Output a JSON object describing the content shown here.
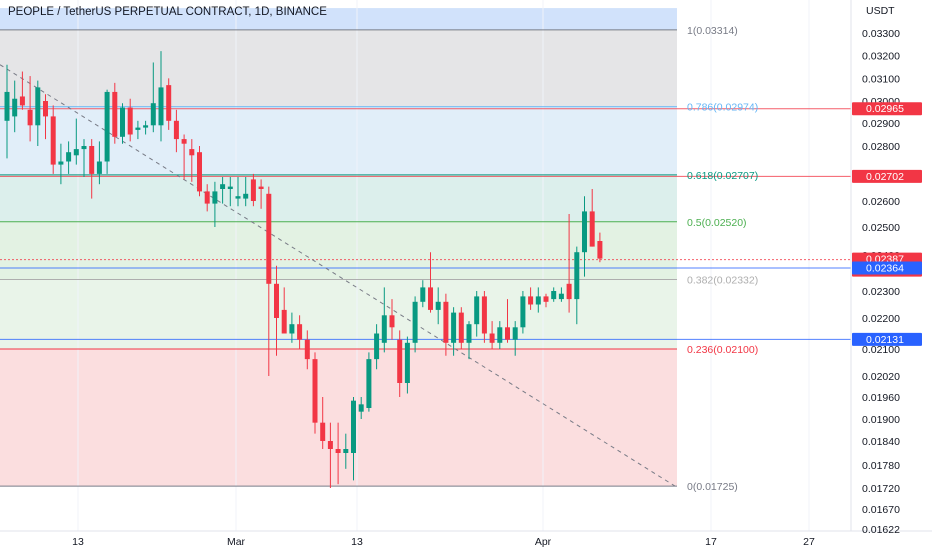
{
  "chart_data": {
    "type": "candlestick",
    "title": "PEOPLE / TetherUS PERPETUAL CONTRACT, 1D, BINANCE",
    "ylabel": "USDT",
    "ylim": [
      0.01622,
      0.0341
    ],
    "y_ticks": [
      "0.03300",
      "0.03200",
      "0.03100",
      "0.03000",
      "0.02900",
      "0.02800",
      "0.02700",
      "0.02600",
      "0.02500",
      "0.02400",
      "0.02300",
      "0.02200",
      "0.02100",
      "0.02020",
      "0.01960",
      "0.01900",
      "0.01840",
      "0.01780",
      "0.01720",
      "0.01670",
      "0.01622"
    ],
    "x_ticks": [
      "13",
      "Mar",
      "13",
      "Apr",
      "17",
      "27"
    ],
    "fib_levels": [
      {
        "label": "1(0.03314)",
        "value": 0.03314,
        "color": "#787b86"
      },
      {
        "label": "0.786(0.02974)",
        "value": 0.02974,
        "color": "#64b5f6"
      },
      {
        "label": "0.618(0.02707)",
        "value": 0.02707,
        "color": "#089981"
      },
      {
        "label": "0.5(0.02520)",
        "value": 0.0252,
        "color": "#4caf50"
      },
      {
        "label": "0.382(0.02332)",
        "value": 0.02332,
        "color": "#aeaeae"
      },
      {
        "label": "0.236(0.02100)",
        "value": 0.021,
        "color": "#f23645"
      },
      {
        "label": "0(0.01725)",
        "value": 0.01725,
        "color": "#787b86"
      }
    ],
    "fib_zones": [
      {
        "from": 0.03314,
        "to": 0.0341,
        "color": "#d1e2fb"
      },
      {
        "from": 0.02974,
        "to": 0.03314,
        "color": "#e5e5e7"
      },
      {
        "from": 0.02707,
        "to": 0.02974,
        "color": "#e1eef9"
      },
      {
        "from": 0.0252,
        "to": 0.02707,
        "color": "#dcefec"
      },
      {
        "from": 0.02332,
        "to": 0.0252,
        "color": "#e3f2e3"
      },
      {
        "from": 0.021,
        "to": 0.02332,
        "color": "#e9f4e9"
      },
      {
        "from": 0.01725,
        "to": 0.021,
        "color": "#fbdedf"
      }
    ],
    "price_tags": [
      {
        "text": "0.02965",
        "value": 0.02965,
        "color": "#f23645"
      },
      {
        "text": "0.02702",
        "value": 0.02702,
        "color": "#f23645"
      },
      {
        "text": "0.02387",
        "value": 0.02387,
        "color": "#f23645",
        "sub": "16:09:17"
      },
      {
        "text": "0.02364",
        "value": 0.02364,
        "color": "#2962ff"
      },
      {
        "text": "0.02131",
        "value": 0.02131,
        "color": "#2962ff"
      }
    ],
    "trendline": {
      "from": [
        0.0,
        0.0316
      ],
      "to": [
        675.0,
        0.01725
      ]
    },
    "candles": [
      {
        "o": 0.0291,
        "h": 0.0316,
        "l": 0.0276,
        "c": 0.0304
      },
      {
        "o": 0.0293,
        "h": 0.0309,
        "l": 0.0286,
        "c": 0.0301
      },
      {
        "o": 0.0302,
        "h": 0.0313,
        "l": 0.0296,
        "c": 0.0298
      },
      {
        "o": 0.0296,
        "h": 0.0311,
        "l": 0.0282,
        "c": 0.0289
      },
      {
        "o": 0.0289,
        "h": 0.0309,
        "l": 0.028,
        "c": 0.0306
      },
      {
        "o": 0.03,
        "h": 0.0303,
        "l": 0.0283,
        "c": 0.0293
      },
      {
        "o": 0.0293,
        "h": 0.0298,
        "l": 0.0271,
        "c": 0.0274
      },
      {
        "o": 0.0274,
        "h": 0.0281,
        "l": 0.0267,
        "c": 0.0275
      },
      {
        "o": 0.0275,
        "h": 0.0282,
        "l": 0.0271,
        "c": 0.0278
      },
      {
        "o": 0.0277,
        "h": 0.0292,
        "l": 0.0274,
        "c": 0.0279
      },
      {
        "o": 0.0279,
        "h": 0.0283,
        "l": 0.027,
        "c": 0.028
      },
      {
        "o": 0.028,
        "h": 0.0283,
        "l": 0.0261,
        "c": 0.0271
      },
      {
        "o": 0.0271,
        "h": 0.0282,
        "l": 0.0267,
        "c": 0.0275
      },
      {
        "o": 0.0275,
        "h": 0.0305,
        "l": 0.0271,
        "c": 0.0304
      },
      {
        "o": 0.0304,
        "h": 0.0308,
        "l": 0.0281,
        "c": 0.0284
      },
      {
        "o": 0.0284,
        "h": 0.0299,
        "l": 0.0281,
        "c": 0.0297
      },
      {
        "o": 0.0297,
        "h": 0.0301,
        "l": 0.0282,
        "c": 0.0285
      },
      {
        "o": 0.0287,
        "h": 0.0291,
        "l": 0.0283,
        "c": 0.0288
      },
      {
        "o": 0.0288,
        "h": 0.0291,
        "l": 0.0285,
        "c": 0.0289
      },
      {
        "o": 0.0289,
        "h": 0.0317,
        "l": 0.0286,
        "c": 0.0299
      },
      {
        "o": 0.0289,
        "h": 0.0322,
        "l": 0.0282,
        "c": 0.0306
      },
      {
        "o": 0.0307,
        "h": 0.031,
        "l": 0.0287,
        "c": 0.0291
      },
      {
        "o": 0.0291,
        "h": 0.0296,
        "l": 0.0278,
        "c": 0.0283
      },
      {
        "o": 0.0283,
        "h": 0.0285,
        "l": 0.0269,
        "c": 0.0281
      },
      {
        "o": 0.0279,
        "h": 0.0283,
        "l": 0.0268,
        "c": 0.0277
      },
      {
        "o": 0.0278,
        "h": 0.028,
        "l": 0.0262,
        "c": 0.0264
      },
      {
        "o": 0.0264,
        "h": 0.0267,
        "l": 0.0256,
        "c": 0.0259
      },
      {
        "o": 0.0259,
        "h": 0.0268,
        "l": 0.025,
        "c": 0.0264
      },
      {
        "o": 0.0265,
        "h": 0.027,
        "l": 0.0259,
        "c": 0.0267
      },
      {
        "o": 0.0265,
        "h": 0.027,
        "l": 0.0258,
        "c": 0.0266
      },
      {
        "o": 0.0261,
        "h": 0.027,
        "l": 0.0258,
        "c": 0.0262
      },
      {
        "o": 0.0261,
        "h": 0.027,
        "l": 0.0258,
        "c": 0.0263
      },
      {
        "o": 0.0269,
        "h": 0.0271,
        "l": 0.0258,
        "c": 0.026
      },
      {
        "o": 0.0266,
        "h": 0.0269,
        "l": 0.0257,
        "c": 0.0265
      },
      {
        "o": 0.0263,
        "h": 0.0266,
        "l": 0.0202,
        "c": 0.0232
      },
      {
        "o": 0.0232,
        "h": 0.0237,
        "l": 0.0208,
        "c": 0.022
      },
      {
        "o": 0.0223,
        "h": 0.0231,
        "l": 0.0216,
        "c": 0.0215
      },
      {
        "o": 0.0215,
        "h": 0.0222,
        "l": 0.0212,
        "c": 0.0218
      },
      {
        "o": 0.0218,
        "h": 0.0221,
        "l": 0.021,
        "c": 0.0213
      },
      {
        "o": 0.0213,
        "h": 0.0216,
        "l": 0.0204,
        "c": 0.0207
      },
      {
        "o": 0.0207,
        "h": 0.0209,
        "l": 0.0186,
        "c": 0.0189
      },
      {
        "o": 0.0189,
        "h": 0.0196,
        "l": 0.0182,
        "c": 0.0184
      },
      {
        "o": 0.0184,
        "h": 0.0189,
        "l": 0.0172,
        "c": 0.0182
      },
      {
        "o": 0.0182,
        "h": 0.0189,
        "l": 0.0173,
        "c": 0.0181
      },
      {
        "o": 0.0181,
        "h": 0.0186,
        "l": 0.0177,
        "c": 0.0182
      },
      {
        "o": 0.0181,
        "h": 0.0196,
        "l": 0.0174,
        "c": 0.0195
      },
      {
        "o": 0.0192,
        "h": 0.0196,
        "l": 0.019,
        "c": 0.0194
      },
      {
        "o": 0.0193,
        "h": 0.0209,
        "l": 0.0192,
        "c": 0.0207
      },
      {
        "o": 0.0207,
        "h": 0.0218,
        "l": 0.0204,
        "c": 0.0215
      },
      {
        "o": 0.0212,
        "h": 0.0231,
        "l": 0.0209,
        "c": 0.0221
      },
      {
        "o": 0.0221,
        "h": 0.0227,
        "l": 0.0213,
        "c": 0.0217
      },
      {
        "o": 0.0213,
        "h": 0.0216,
        "l": 0.0196,
        "c": 0.02
      },
      {
        "o": 0.02,
        "h": 0.0214,
        "l": 0.0197,
        "c": 0.0212
      },
      {
        "o": 0.0212,
        "h": 0.0228,
        "l": 0.0209,
        "c": 0.0226
      },
      {
        "o": 0.0226,
        "h": 0.0233,
        "l": 0.0224,
        "c": 0.0231
      },
      {
        "o": 0.0231,
        "h": 0.0241,
        "l": 0.0222,
        "c": 0.0223
      },
      {
        "o": 0.0223,
        "h": 0.0231,
        "l": 0.0218,
        "c": 0.0226
      },
      {
        "o": 0.0226,
        "h": 0.0229,
        "l": 0.0208,
        "c": 0.0212
      },
      {
        "o": 0.0212,
        "h": 0.0224,
        "l": 0.0208,
        "c": 0.0222
      },
      {
        "o": 0.0222,
        "h": 0.0224,
        "l": 0.021,
        "c": 0.0212
      },
      {
        "o": 0.0212,
        "h": 0.0219,
        "l": 0.0207,
        "c": 0.0218
      },
      {
        "o": 0.0218,
        "h": 0.023,
        "l": 0.0214,
        "c": 0.0228
      },
      {
        "o": 0.0228,
        "h": 0.023,
        "l": 0.0212,
        "c": 0.0215
      },
      {
        "o": 0.0215,
        "h": 0.0219,
        "l": 0.021,
        "c": 0.0212
      },
      {
        "o": 0.0212,
        "h": 0.0219,
        "l": 0.021,
        "c": 0.0217
      },
      {
        "o": 0.0217,
        "h": 0.0227,
        "l": 0.0212,
        "c": 0.0213
      },
      {
        "o": 0.0213,
        "h": 0.0219,
        "l": 0.0208,
        "c": 0.0217
      },
      {
        "o": 0.0217,
        "h": 0.023,
        "l": 0.0215,
        "c": 0.0228
      },
      {
        "o": 0.0228,
        "h": 0.0231,
        "l": 0.0223,
        "c": 0.0225
      },
      {
        "o": 0.0225,
        "h": 0.0231,
        "l": 0.0222,
        "c": 0.0228
      },
      {
        "o": 0.0228,
        "h": 0.0229,
        "l": 0.0224,
        "c": 0.0226
      },
      {
        "o": 0.0227,
        "h": 0.0231,
        "l": 0.0226,
        "c": 0.023
      },
      {
        "o": 0.0227,
        "h": 0.0231,
        "l": 0.0226,
        "c": 0.0229
      },
      {
        "o": 0.0232,
        "h": 0.0255,
        "l": 0.0222,
        "c": 0.0227
      },
      {
        "o": 0.0227,
        "h": 0.0243,
        "l": 0.0218,
        "c": 0.0241
      },
      {
        "o": 0.0241,
        "h": 0.0262,
        "l": 0.0234,
        "c": 0.0256
      },
      {
        "o": 0.0256,
        "h": 0.0265,
        "l": 0.0243,
        "c": 0.0243
      },
      {
        "o": 0.0245,
        "h": 0.0248,
        "l": 0.0238,
        "c": 0.0239
      }
    ],
    "candle_x_start": 7,
    "candle_spacing": 7.7,
    "x_tick_positions": [
      78,
      236,
      357,
      543,
      711,
      809
    ]
  }
}
